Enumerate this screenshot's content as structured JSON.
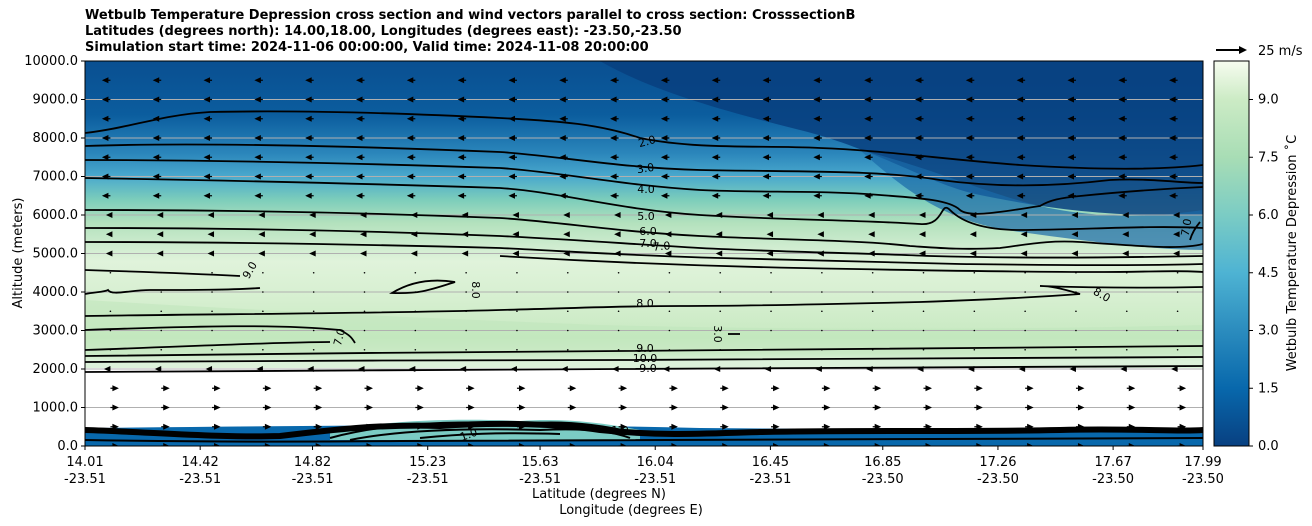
{
  "chart_data": {
    "type": "contour",
    "title": [
      "Wetbulb Temperature Depression cross section and wind vectors parallel to cross section: CrosssectionB",
      "Latitudes (degrees north): 14.00,18.00, Longitudes (degrees east): -23.50,-23.50",
      "Simulation start time: 2024-11-06 00:00:00, Valid time: 2024-11-08 20:00:00"
    ],
    "ylabel": "Altitude (meters)",
    "xlabel_lat": "Latitude (degrees N)",
    "xlabel_lon": "Longitude (degrees E)",
    "ylim": [
      0,
      10000
    ],
    "yticks": [
      "0.0",
      "1000.0",
      "2000.0",
      "3000.0",
      "4000.0",
      "5000.0",
      "6000.0",
      "7000.0",
      "8000.0",
      "9000.0",
      "10000.0"
    ],
    "xlim": [
      14.01,
      17.99
    ],
    "xticks_lat": [
      "14.01",
      "14.42",
      "14.82",
      "15.23",
      "15.63",
      "16.04",
      "16.45",
      "16.85",
      "17.26",
      "17.67",
      "17.99"
    ],
    "xticks_lon": [
      "-23.51",
      "-23.51",
      "-23.51",
      "-23.51",
      "-23.51",
      "-23.51",
      "-23.51",
      "-23.50",
      "-23.50",
      "-23.50",
      "-23.50"
    ],
    "grid": true,
    "colorbar": {
      "label": "Wetbulb Temperature Depression ˚C",
      "range": [
        0,
        10
      ],
      "ticks": [
        "0.0",
        "1.5",
        "3.0",
        "4.5",
        "6.0",
        "7.5",
        "9.0"
      ],
      "colormap": "GnBu_r"
    },
    "quiver_key": {
      "label": "25 m/s",
      "value": 25
    },
    "contour_labels": [
      "2.0",
      "3.0",
      "4.0",
      "5.0",
      "6.0",
      "7.0",
      "7.0",
      "8.0",
      "8.0",
      "9.0",
      "10.0",
      "9.0",
      "9.0",
      "8.0",
      "7.0",
      "7.0",
      "3.0",
      "1.0",
      "1.0"
    ],
    "contour_levels": [
      2,
      3,
      4,
      5,
      6,
      7,
      8,
      9,
      10
    ],
    "wind": {
      "upper_direction": "westward (toward south) above 2000 m",
      "lower_direction": "eastward (toward north) below 2000 m"
    },
    "colors": {
      "deep": "#084081",
      "upper": "#0a5a9c",
      "mid": "#3a9ac6",
      "light_mid": "#7ccdbb",
      "moist": "#a8ddb5",
      "pale": "#e0f3db",
      "palest": "#f7fcf0"
    }
  }
}
